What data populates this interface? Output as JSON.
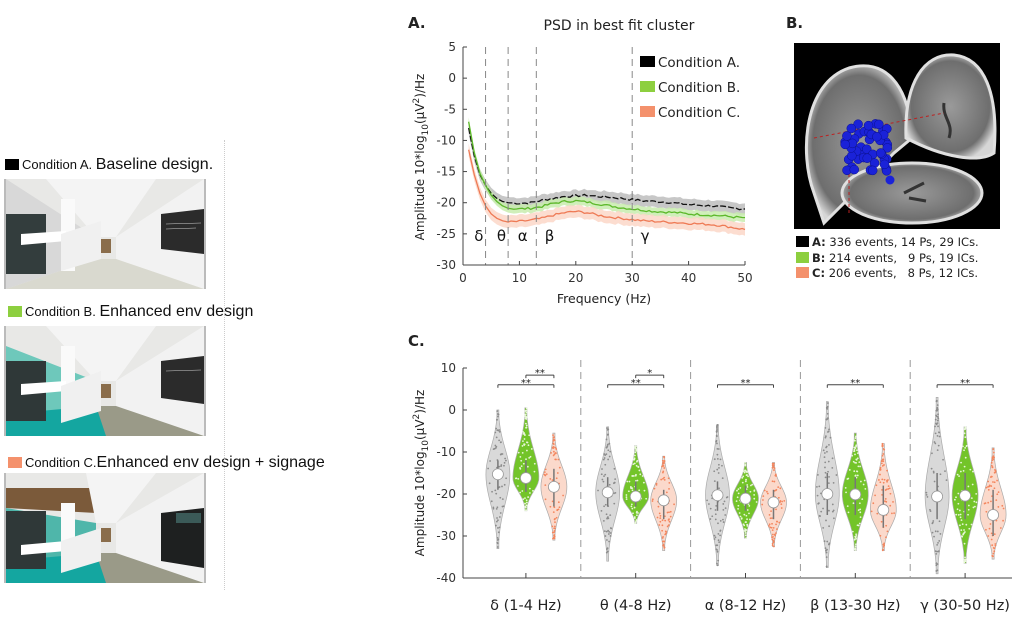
{
  "conditions": [
    {
      "tag": "Condition A.",
      "desc": "Baseline design.",
      "color": "#000000",
      "scene": "baseline"
    },
    {
      "tag": "Condition B.",
      "desc": "Enhanced env design",
      "color": "#8dcf3f",
      "scene": "enhanced"
    },
    {
      "tag": "Condition C.",
      "desc": "Enhanced env design + signage",
      "color": "#f4916c",
      "scene": "signage"
    }
  ],
  "panelB": {
    "letter": "B.",
    "legend": [
      {
        "label": "A:",
        "text": "336 events, 14 Ps, 29 ICs.",
        "color": "#000000"
      },
      {
        "label": "B:",
        "text": "214 events,   9 Ps, 19 ICs.",
        "color": "#8dcf3f"
      },
      {
        "label": "C:",
        "text": "206 events,   8 Ps, 12 ICs.",
        "color": "#f4916c"
      }
    ]
  },
  "chart_data": [
    {
      "panel": "A.",
      "type": "line",
      "title": "PSD in best fit cluster",
      "xlabel": "Frequency (Hz)",
      "ylabel": "Amplitude 10*log10(µV²)/Hz",
      "xlim": [
        0,
        50
      ],
      "ylim": [
        -30,
        5
      ],
      "xticks": [
        "0",
        "10",
        "20",
        "30",
        "40",
        "50"
      ],
      "yticks": [
        "5",
        "0",
        "-5",
        "-10",
        "-15",
        "-20",
        "-25",
        "-30"
      ],
      "band_boundaries": [
        4,
        8,
        13,
        30
      ],
      "band_labels": [
        {
          "label": "δ",
          "x": 2
        },
        {
          "label": "θ",
          "x": 6
        },
        {
          "label": "α",
          "x": 9.7
        },
        {
          "label": "β",
          "x": 14.5
        },
        {
          "label": "γ",
          "x": 31.5
        }
      ],
      "legend": [
        "Condition A.",
        "Condition B.",
        "Condition C."
      ],
      "legend_position": "top-right",
      "x": [
        1,
        2,
        3,
        4,
        5,
        6,
        7,
        8,
        10,
        12,
        14,
        16,
        18,
        20,
        22,
        24,
        26,
        28,
        30,
        32,
        34,
        36,
        38,
        40,
        42,
        44,
        46,
        48,
        50
      ],
      "series": [
        {
          "name": "Condition A.",
          "color": "#111111",
          "band": "#bdbdbd",
          "ci": 0.9,
          "values": [
            -8,
            -12.5,
            -15.5,
            -17.2,
            -18.5,
            -19.3,
            -19.8,
            -20.0,
            -20.1,
            -20.0,
            -19.6,
            -19.3,
            -19.0,
            -18.9,
            -18.8,
            -19.0,
            -19.1,
            -19.3,
            -19.5,
            -19.7,
            -19.8,
            -19.9,
            -20.1,
            -20.3,
            -20.4,
            -20.5,
            -20.7,
            -20.9,
            -21.0
          ]
        },
        {
          "name": "Condition B.",
          "color": "#5cb82a",
          "band": "#c8ecae",
          "ci": 0.7,
          "values": [
            -7,
            -12.0,
            -15.3,
            -17.2,
            -18.8,
            -19.8,
            -20.5,
            -20.9,
            -21.0,
            -20.9,
            -20.6,
            -20.1,
            -19.8,
            -19.7,
            -19.9,
            -20.2,
            -20.5,
            -20.8,
            -21.0,
            -21.2,
            -21.4,
            -21.5,
            -21.6,
            -21.8,
            -21.9,
            -22.0,
            -22.1,
            -22.3,
            -22.4
          ]
        },
        {
          "name": "Condition C.",
          "color": "#ee7a55",
          "band": "#fbd7c8",
          "ci": 1.0,
          "values": [
            -11.5,
            -15.5,
            -18.5,
            -20.5,
            -21.8,
            -22.5,
            -22.9,
            -23.1,
            -23.0,
            -22.8,
            -22.5,
            -22.0,
            -21.6,
            -21.4,
            -21.6,
            -22.0,
            -22.3,
            -22.5,
            -22.7,
            -22.9,
            -23.0,
            -23.1,
            -23.2,
            -23.3,
            -23.4,
            -23.5,
            -23.7,
            -24.0,
            -24.3
          ]
        }
      ]
    },
    {
      "panel": "C.",
      "type": "violin",
      "ylabel": "Amplitude 10*log10(µV²)/Hz",
      "ylim": [
        -40,
        10
      ],
      "yticks": [
        "10",
        "0",
        "-10",
        "-20",
        "-30",
        "-40"
      ],
      "categories": [
        "δ (1-4 Hz)",
        "θ (4-8 Hz)",
        "α (8-12 Hz)",
        "β (13-30 Hz)",
        "γ (30-50 Hz)"
      ],
      "series_names": [
        "Condition A.",
        "Condition B.",
        "Condition C."
      ],
      "series_colors": [
        "#8c8c8c",
        "#6cc11e",
        "#f4865e"
      ],
      "groups": [
        {
          "violins": [
            {
              "median": -15.3,
              "min": -33,
              "max": 0,
              "q1": -19,
              "q3": -12
            },
            {
              "median": -16.2,
              "min": -24,
              "max": 0.5,
              "q1": -19.5,
              "q3": -12
            },
            {
              "median": -18.3,
              "min": -31,
              "max": -5.5,
              "q1": -23,
              "q3": -14
            }
          ],
          "sig": [
            {
              "from": 0,
              "to": 2,
              "label": "**"
            },
            {
              "from": 1,
              "to": 2,
              "label": "**"
            }
          ]
        },
        {
          "violins": [
            {
              "median": -19.6,
              "min": -36,
              "max": -4,
              "q1": -23,
              "q3": -16
            },
            {
              "median": -20.6,
              "min": -27,
              "max": -8.5,
              "q1": -23,
              "q3": -17
            },
            {
              "median": -21.5,
              "min": -33.5,
              "max": -11,
              "q1": -26,
              "q3": -19
            }
          ],
          "sig": [
            {
              "from": 0,
              "to": 2,
              "label": "**"
            },
            {
              "from": 1,
              "to": 2,
              "label": "*"
            }
          ]
        },
        {
          "violins": [
            {
              "median": -20.3,
              "min": -37,
              "max": -3.5,
              "q1": -24,
              "q3": -17
            },
            {
              "median": -21.1,
              "min": -30.5,
              "max": -12.5,
              "q1": -24,
              "q3": -18
            },
            {
              "median": -22.0,
              "min": -32.5,
              "max": -12.5,
              "q1": -26,
              "q3": -19
            }
          ],
          "sig": [
            {
              "from": 0,
              "to": 2,
              "label": "**"
            }
          ]
        },
        {
          "violins": [
            {
              "median": -20.0,
              "min": -37.5,
              "max": 2,
              "q1": -25,
              "q3": -15
            },
            {
              "median": -20.1,
              "min": -33.5,
              "max": -5.5,
              "q1": -25,
              "q3": -16
            },
            {
              "median": -23.8,
              "min": -33.5,
              "max": -8,
              "q1": -28,
              "q3": -18
            }
          ],
          "sig": [
            {
              "from": 0,
              "to": 2,
              "label": "**"
            }
          ]
        },
        {
          "violins": [
            {
              "median": -20.6,
              "min": -39,
              "max": 3,
              "q1": -26,
              "q3": -15
            },
            {
              "median": -20.4,
              "min": -36.5,
              "max": -4,
              "q1": -26,
              "q3": -15
            },
            {
              "median": -25.0,
              "min": -35.5,
              "max": -9,
              "q1": -30,
              "q3": -19
            }
          ],
          "sig": [
            {
              "from": 0,
              "to": 2,
              "label": "**"
            }
          ]
        }
      ]
    }
  ]
}
